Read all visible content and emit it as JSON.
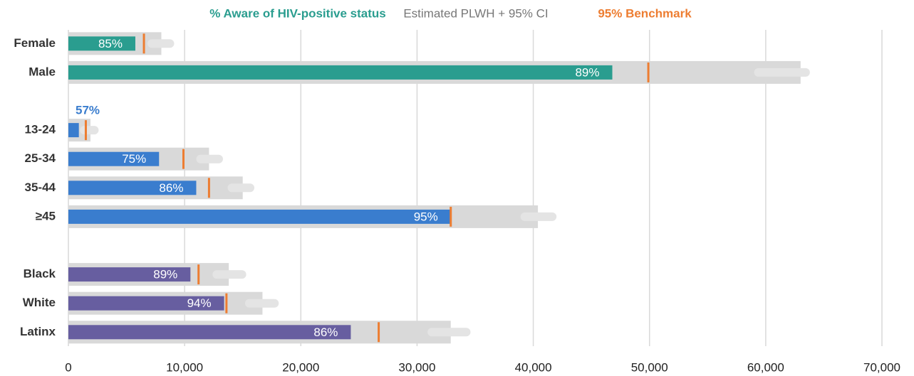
{
  "chart_data": {
    "type": "bullet",
    "orientation": "horizontal",
    "categories": [
      "Female",
      "Male",
      null,
      "13-24",
      "25-34",
      "35-44",
      "≥45",
      null,
      "Black",
      "White",
      "Latinx"
    ],
    "series": [
      {
        "name": "% Aware of HIV-positive status",
        "color": "#2a9d8f",
        "colors": [
          "#2a9d8f",
          "#2a9d8f",
          null,
          "#3a7dce",
          "#3a7dce",
          "#3a7dce",
          "#3a7dce",
          null,
          "#675ea0",
          "#675ea0",
          "#675ea0"
        ],
        "values": [
          5760,
          46800,
          null,
          900,
          7800,
          11000,
          32900,
          null,
          10500,
          13400,
          24300
        ],
        "labels": [
          "85%",
          "89%",
          null,
          "57%",
          "75%",
          "86%",
          "95%",
          null,
          "89%",
          "94%",
          "86%"
        ]
      },
      {
        "name": "Estimated PLWH + 95% CI",
        "color": "#d9d9d9",
        "ci_color": "#e4e4e4",
        "values": [
          8000,
          63000,
          null,
          1900,
          12100,
          15000,
          40400,
          null,
          13800,
          16700,
          32900
        ],
        "ci_low": [
          6800,
          59000,
          null,
          1000,
          11000,
          13700,
          38900,
          null,
          12400,
          15200,
          30900
        ],
        "ci_high": [
          9100,
          63800,
          null,
          2600,
          13300,
          16000,
          42000,
          null,
          15300,
          18100,
          34600
        ]
      },
      {
        "name": "95% Benchmark",
        "color": "#ed7d31",
        "values": [
          6500,
          49900,
          null,
          1500,
          9900,
          12100,
          32900,
          null,
          11200,
          13600,
          26700
        ]
      }
    ],
    "xlim": [
      0,
      70000
    ],
    "xticks": [
      0,
      {
        "value": 10000,
        "label": "10,000"
      },
      {
        "value": 20000,
        "label": "20,000"
      },
      {
        "value": 30000,
        "label": "30,000"
      },
      {
        "value": 40000,
        "label": "40,000"
      },
      {
        "value": 50000,
        "label": "50,000"
      },
      {
        "value": 60000,
        "label": "60,000"
      },
      {
        "value": 70000,
        "label": "70,000"
      }
    ],
    "grid": true,
    "legend": "top"
  }
}
